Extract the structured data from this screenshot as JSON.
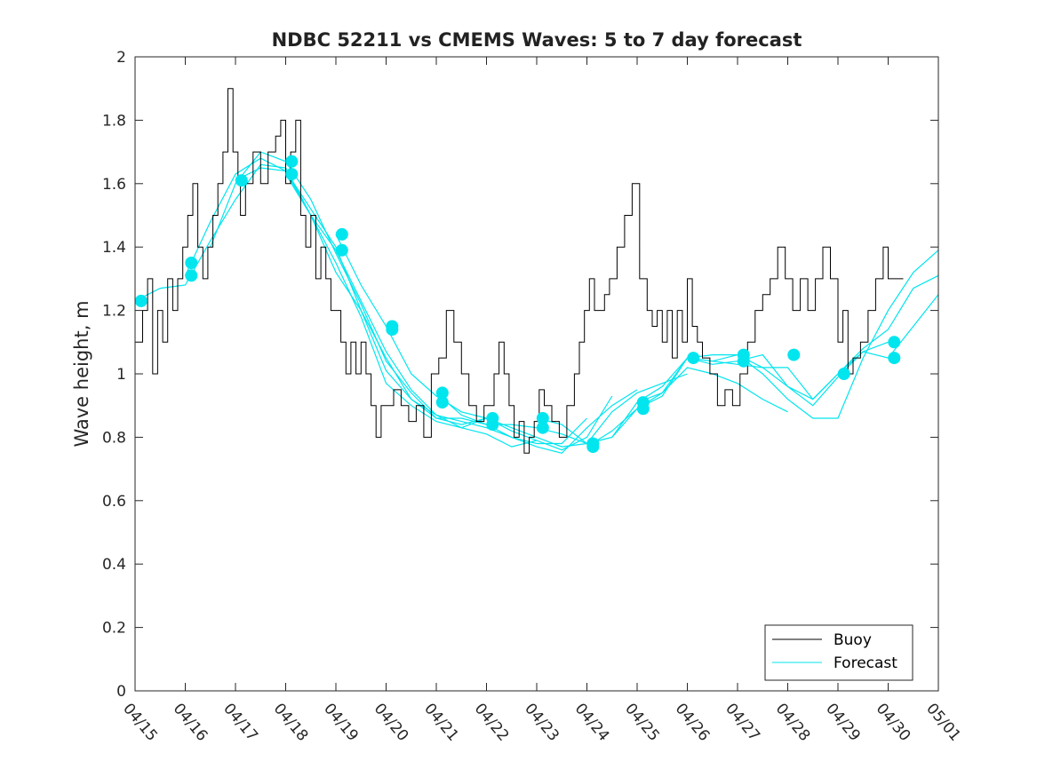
{
  "chart_data": {
    "type": "line",
    "title": "NDBC 52211 vs CMEMS Waves: 5 to 7 day forecast",
    "xlabel": "",
    "ylabel": "Wave height, m",
    "x_range_days": [
      0,
      16
    ],
    "xlim": [
      "04/15",
      "05/01"
    ],
    "ylim": [
      0,
      2
    ],
    "x_ticks": [
      "04/15",
      "04/16",
      "04/17",
      "04/18",
      "04/19",
      "04/20",
      "04/21",
      "04/22",
      "04/23",
      "04/24",
      "04/25",
      "04/26",
      "04/27",
      "04/28",
      "04/29",
      "04/30",
      "05/01"
    ],
    "y_ticks": [
      "0",
      "0.2",
      "0.4",
      "0.6",
      "0.8",
      "1",
      "1.2",
      "1.4",
      "1.6",
      "1.8",
      "2"
    ],
    "grid": false,
    "legend_position": "bottom-right",
    "series": [
      {
        "name": "Buoy",
        "color": "#000000",
        "x": [
          0.0,
          0.15,
          0.25,
          0.35,
          0.45,
          0.55,
          0.65,
          0.75,
          0.85,
          0.95,
          1.05,
          1.15,
          1.25,
          1.35,
          1.45,
          1.55,
          1.65,
          1.75,
          1.85,
          1.95,
          2.05,
          2.1,
          2.2,
          2.35,
          2.5,
          2.65,
          2.8,
          2.9,
          3.0,
          3.1,
          3.2,
          3.3,
          3.4,
          3.5,
          3.6,
          3.7,
          3.8,
          3.9,
          4.0,
          4.1,
          4.2,
          4.3,
          4.4,
          4.5,
          4.6,
          4.7,
          4.8,
          4.9,
          5.0,
          5.15,
          5.3,
          5.45,
          5.6,
          5.75,
          5.9,
          6.05,
          6.2,
          6.35,
          6.5,
          6.65,
          6.8,
          6.95,
          7.05,
          7.15,
          7.25,
          7.35,
          7.45,
          7.55,
          7.65,
          7.75,
          7.85,
          7.95,
          8.05,
          8.15,
          8.3,
          8.45,
          8.6,
          8.75,
          8.85,
          8.95,
          9.05,
          9.15,
          9.25,
          9.35,
          9.45,
          9.6,
          9.75,
          9.9,
          10.05,
          10.2,
          10.3,
          10.4,
          10.5,
          10.6,
          10.7,
          10.8,
          10.9,
          11.0,
          11.1,
          11.2,
          11.3,
          11.45,
          11.6,
          11.75,
          11.9,
          12.05,
          12.2,
          12.35,
          12.5,
          12.65,
          12.8,
          12.95,
          13.1,
          13.25,
          13.4,
          13.55,
          13.7,
          13.85,
          14.0,
          14.1,
          14.2,
          14.3,
          14.45,
          14.6,
          14.75,
          14.9,
          15.0,
          15.1,
          15.2,
          15.3
        ],
        "y": [
          1.1,
          1.2,
          1.3,
          1.0,
          1.2,
          1.1,
          1.3,
          1.2,
          1.3,
          1.4,
          1.5,
          1.6,
          1.4,
          1.3,
          1.4,
          1.5,
          1.6,
          1.7,
          1.9,
          1.7,
          1.6,
          1.5,
          1.6,
          1.7,
          1.6,
          1.7,
          1.75,
          1.8,
          1.6,
          1.7,
          1.8,
          1.5,
          1.4,
          1.5,
          1.3,
          1.4,
          1.3,
          1.2,
          1.2,
          1.1,
          1.0,
          1.1,
          1.0,
          1.1,
          1.0,
          0.9,
          0.8,
          0.9,
          0.9,
          0.95,
          0.9,
          0.85,
          0.9,
          0.8,
          1.0,
          1.05,
          1.2,
          1.1,
          1.0,
          0.9,
          0.85,
          0.9,
          0.9,
          1.0,
          1.1,
          1.0,
          0.9,
          0.8,
          0.85,
          0.75,
          0.8,
          0.85,
          0.95,
          0.9,
          0.85,
          0.8,
          0.9,
          1.0,
          1.1,
          1.2,
          1.3,
          1.2,
          1.2,
          1.25,
          1.3,
          1.4,
          1.5,
          1.6,
          1.3,
          1.2,
          1.15,
          1.2,
          1.1,
          1.2,
          1.05,
          1.2,
          1.1,
          1.3,
          1.15,
          1.1,
          1.05,
          1.0,
          0.9,
          0.95,
          0.9,
          1.0,
          1.1,
          1.2,
          1.25,
          1.3,
          1.4,
          1.3,
          1.2,
          1.3,
          1.2,
          1.3,
          1.4,
          1.3,
          1.1,
          1.2,
          1.0,
          1.05,
          1.1,
          1.2,
          1.3,
          1.4,
          1.3,
          1.3,
          1.3,
          1.3
        ]
      },
      {
        "name": "Forecast",
        "color": "#00E5EE",
        "lines": [
          {
            "x": [
              0,
              0.5,
              1.0,
              1.5,
              2.0,
              2.5,
              3.0,
              3.5,
              4.0,
              4.5,
              5.0,
              5.5,
              6.0,
              6.5,
              7.0
            ],
            "y": [
              1.23,
              1.27,
              1.28,
              1.42,
              1.55,
              1.66,
              1.65,
              1.5,
              1.32,
              1.2,
              1.05,
              0.92,
              0.87,
              0.83,
              0.86
            ]
          },
          {
            "x": [
              1.0,
              1.5,
              2.0,
              2.5,
              3.0,
              3.5,
              4.0,
              4.5,
              5.0,
              5.5,
              6.0,
              6.5,
              7.0,
              7.5,
              8.0
            ],
            "y": [
              1.31,
              1.48,
              1.63,
              1.68,
              1.64,
              1.5,
              1.35,
              1.18,
              0.97,
              0.9,
              0.85,
              0.83,
              0.81,
              0.77,
              0.79
            ]
          },
          {
            "x": [
              1.5,
              2.0,
              2.5,
              3.0,
              3.5,
              4.0,
              4.5,
              5.0,
              5.5,
              6.0,
              6.5,
              7.0,
              7.5,
              8.0,
              8.5,
              9.0
            ],
            "y": [
              1.4,
              1.6,
              1.7,
              1.67,
              1.55,
              1.38,
              1.22,
              1.04,
              0.94,
              0.86,
              0.86,
              0.84,
              0.8,
              0.78,
              0.78,
              0.86
            ]
          },
          {
            "x": [
              2.0,
              2.5,
              3.0,
              3.5,
              4.0,
              4.5,
              5.0,
              5.5,
              6.0,
              6.5,
              7.0,
              7.5,
              8.0,
              8.5,
              9.0,
              9.5
            ],
            "y": [
              1.61,
              1.65,
              1.64,
              1.52,
              1.4,
              1.2,
              1.01,
              0.92,
              0.86,
              0.84,
              0.86,
              0.82,
              0.79,
              0.76,
              0.8,
              0.93
            ]
          },
          {
            "x": [
              3.0,
              3.5,
              4.0,
              4.5,
              5.0,
              5.5,
              6.0,
              6.5,
              7.0,
              7.5,
              8.0,
              8.5,
              9.0,
              9.5,
              10.0
            ],
            "y": [
              1.63,
              1.5,
              1.39,
              1.23,
              1.07,
              0.95,
              0.87,
              0.85,
              0.83,
              0.8,
              0.77,
              0.75,
              0.83,
              0.9,
              0.95
            ]
          },
          {
            "x": [
              4.0,
              4.5,
              5.0,
              5.5,
              6.0,
              6.5,
              7.0,
              7.5,
              8.0,
              8.5,
              9.0,
              9.5,
              10.0,
              10.5,
              11.0
            ],
            "y": [
              1.44,
              1.28,
              1.15,
              1.0,
              0.93,
              0.88,
              0.86,
              0.83,
              0.8,
              0.77,
              0.78,
              0.88,
              0.94,
              0.97,
              1.0
            ]
          },
          {
            "x": [
              6.0,
              6.5,
              7.0,
              7.5,
              8.0,
              8.5,
              9.0,
              9.5,
              10.0,
              10.5,
              11.0,
              11.5,
              12.0,
              12.5,
              13.0
            ],
            "y": [
              0.94,
              0.87,
              0.84,
              0.84,
              0.83,
              0.81,
              0.78,
              0.8,
              0.89,
              0.94,
              1.02,
              1.0,
              0.97,
              0.92,
              0.88
            ]
          },
          {
            "x": [
              8.0,
              8.5,
              9.0,
              9.5,
              10.0,
              10.5,
              11.0,
              11.5,
              12.0,
              12.5,
              13.0,
              13.5,
              14.0,
              14.5,
              15.0
            ],
            "y": [
              0.86,
              0.84,
              0.78,
              0.8,
              0.91,
              0.96,
              1.05,
              1.04,
              1.03,
              1.02,
              0.96,
              0.9,
              0.99,
              1.07,
              1.1
            ]
          },
          {
            "x": [
              9.0,
              9.5,
              10.0,
              10.5,
              11.0,
              11.5,
              12.0,
              12.5,
              13.0,
              13.5,
              14.0,
              14.5,
              15.0,
              15.5,
              16.0
            ],
            "y": [
              0.77,
              0.82,
              0.89,
              0.93,
              1.05,
              1.04,
              1.06,
              1.02,
              1.02,
              0.92,
              1.0,
              1.08,
              1.14,
              1.27,
              1.31
            ]
          },
          {
            "x": [
              10.0,
              10.5,
              11.0,
              11.5,
              12.0,
              12.5,
              13.0,
              13.5,
              14.0,
              14.5,
              15.0,
              15.5,
              16.0
            ],
            "y": [
              0.91,
              0.94,
              1.05,
              1.06,
              1.06,
              1.0,
              0.92,
              0.86,
              0.86,
              1.05,
              1.2,
              1.32,
              1.39
            ]
          },
          {
            "x": [
              11.0,
              11.5,
              12.0,
              12.5,
              13.0,
              13.5,
              14.0,
              14.5,
              15.0,
              15.5,
              16.0
            ],
            "y": [
              1.05,
              1.03,
              1.04,
              1.06,
              0.96,
              0.92,
              1.0,
              1.07,
              1.05,
              1.15,
              1.25
            ]
          }
        ],
        "markers": [
          {
            "x": 0.12,
            "y": 1.23
          },
          {
            "x": 1.12,
            "y": 1.35
          },
          {
            "x": 1.12,
            "y": 1.31
          },
          {
            "x": 2.12,
            "y": 1.61
          },
          {
            "x": 3.12,
            "y": 1.67
          },
          {
            "x": 3.12,
            "y": 1.63
          },
          {
            "x": 4.12,
            "y": 1.44
          },
          {
            "x": 4.12,
            "y": 1.39
          },
          {
            "x": 5.12,
            "y": 1.15
          },
          {
            "x": 5.12,
            "y": 1.14
          },
          {
            "x": 6.12,
            "y": 0.94
          },
          {
            "x": 6.12,
            "y": 0.91
          },
          {
            "x": 7.12,
            "y": 0.86
          },
          {
            "x": 7.12,
            "y": 0.84
          },
          {
            "x": 8.12,
            "y": 0.86
          },
          {
            "x": 8.12,
            "y": 0.83
          },
          {
            "x": 9.12,
            "y": 0.78
          },
          {
            "x": 9.12,
            "y": 0.77
          },
          {
            "x": 10.12,
            "y": 0.91
          },
          {
            "x": 10.12,
            "y": 0.89
          },
          {
            "x": 11.12,
            "y": 1.05
          },
          {
            "x": 12.12,
            "y": 1.06
          },
          {
            "x": 12.12,
            "y": 1.04
          },
          {
            "x": 13.12,
            "y": 1.06
          },
          {
            "x": 14.12,
            "y": 1.0
          },
          {
            "x": 15.12,
            "y": 1.1
          },
          {
            "x": 15.12,
            "y": 1.05
          }
        ]
      }
    ],
    "legend": [
      "Buoy",
      "Forecast"
    ]
  }
}
